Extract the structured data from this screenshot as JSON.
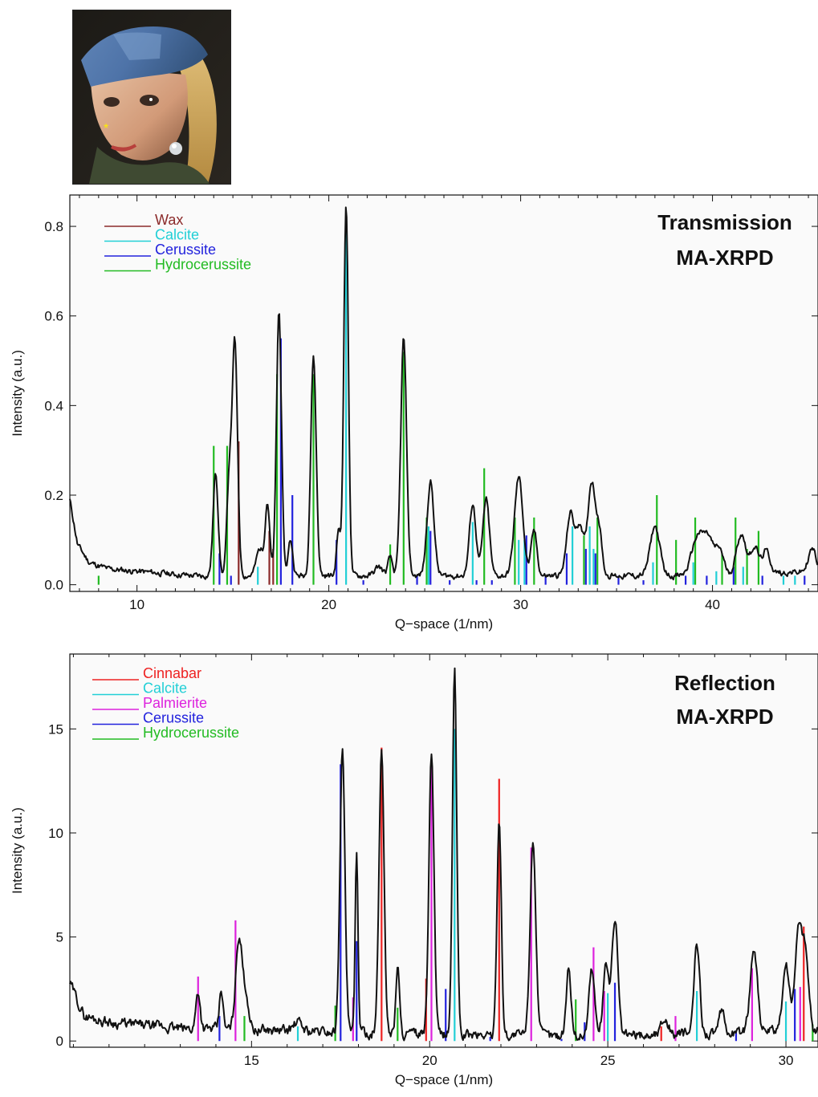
{
  "thumbnail": {
    "description_icon": "painting-thumbnail-icon"
  },
  "chart_data": [
    {
      "type": "line",
      "title": "",
      "annotation": [
        "Transmission",
        "MA-XRPD"
      ],
      "xlabel": "Q−space (1/nm)",
      "ylabel": "Intensity (a.u.)",
      "xlim": [
        6.5,
        45.5
      ],
      "ylim": [
        -0.015,
        0.87
      ],
      "xticks": [
        10,
        20,
        30,
        40
      ],
      "yticks": [
        0.0,
        0.2,
        0.4,
        0.6,
        0.8
      ],
      "ytick_labels": [
        "0.0",
        "0.2",
        "0.4",
        "0.6",
        "0.8"
      ],
      "legend_position": "top-left",
      "legend": [
        {
          "name": "Wax",
          "color": "#8b2a2a"
        },
        {
          "name": "Calcite",
          "color": "#22cfd6"
        },
        {
          "name": "Cerussite",
          "color": "#2222dd"
        },
        {
          "name": "Hydrocerussite",
          "color": "#22bb22"
        }
      ],
      "peaks": [
        {
          "x": 14.1,
          "h": 0.23,
          "w": 0.13
        },
        {
          "x": 14.8,
          "h": 0.2,
          "w": 0.12
        },
        {
          "x": 15.1,
          "h": 0.52,
          "w": 0.14
        },
        {
          "x": 16.4,
          "h": 0.06,
          "w": 0.18
        },
        {
          "x": 16.8,
          "h": 0.16,
          "w": 0.12
        },
        {
          "x": 17.4,
          "h": 0.59,
          "w": 0.13
        },
        {
          "x": 18.0,
          "h": 0.08,
          "w": 0.12
        },
        {
          "x": 19.2,
          "h": 0.49,
          "w": 0.14
        },
        {
          "x": 20.5,
          "h": 0.1,
          "w": 0.1
        },
        {
          "x": 20.9,
          "h": 0.83,
          "w": 0.12
        },
        {
          "x": 22.6,
          "h": 0.02,
          "w": 0.2
        },
        {
          "x": 23.2,
          "h": 0.04,
          "w": 0.12
        },
        {
          "x": 23.9,
          "h": 0.53,
          "w": 0.15
        },
        {
          "x": 25.3,
          "h": 0.21,
          "w": 0.18
        },
        {
          "x": 27.5,
          "h": 0.16,
          "w": 0.17
        },
        {
          "x": 28.2,
          "h": 0.17,
          "w": 0.17
        },
        {
          "x": 29.9,
          "h": 0.22,
          "w": 0.22
        },
        {
          "x": 30.7,
          "h": 0.1,
          "w": 0.15
        },
        {
          "x": 32.6,
          "h": 0.14,
          "w": 0.2
        },
        {
          "x": 33.1,
          "h": 0.11,
          "w": 0.18
        },
        {
          "x": 33.7,
          "h": 0.21,
          "w": 0.2
        },
        {
          "x": 34.1,
          "h": 0.09,
          "w": 0.15
        },
        {
          "x": 37.0,
          "h": 0.11,
          "w": 0.25
        },
        {
          "x": 39.2,
          "h": 0.08,
          "w": 0.3
        },
        {
          "x": 39.8,
          "h": 0.08,
          "w": 0.3
        },
        {
          "x": 40.4,
          "h": 0.05,
          "w": 0.2
        },
        {
          "x": 41.5,
          "h": 0.09,
          "w": 0.25
        },
        {
          "x": 42.2,
          "h": 0.06,
          "w": 0.2
        },
        {
          "x": 42.8,
          "h": 0.05,
          "w": 0.2
        },
        {
          "x": 45.2,
          "h": 0.05,
          "w": 0.2
        }
      ],
      "baseline": [
        [
          6.5,
          0.19
        ],
        [
          6.9,
          0.09
        ],
        [
          7.5,
          0.05
        ],
        [
          8.5,
          0.035
        ],
        [
          10.0,
          0.03
        ],
        [
          11.5,
          0.025
        ],
        [
          13.0,
          0.02
        ],
        [
          20.0,
          0.02
        ],
        [
          30.0,
          0.02
        ],
        [
          40.0,
          0.02
        ],
        [
          45.5,
          0.03
        ]
      ],
      "sticks": [
        {
          "phase": "Wax",
          "color": "#8b2a2a",
          "lines": [
            [
              15.3,
              0.32
            ],
            [
              16.9,
              0.12
            ],
            [
              17.1,
              0.08
            ]
          ]
        },
        {
          "phase": "Calcite",
          "color": "#22cfd6",
          "lines": [
            [
              16.3,
              0.04
            ],
            [
              20.9,
              0.83
            ],
            [
              25.2,
              0.13
            ],
            [
              27.5,
              0.14
            ],
            [
              29.9,
              0.1
            ],
            [
              30.2,
              0.1
            ],
            [
              32.7,
              0.13
            ],
            [
              33.6,
              0.13
            ],
            [
              33.8,
              0.08
            ],
            [
              36.9,
              0.05
            ],
            [
              39.0,
              0.05
            ],
            [
              40.2,
              0.03
            ],
            [
              41.6,
              0.04
            ],
            [
              43.7,
              0.02
            ],
            [
              44.3,
              0.02
            ]
          ]
        },
        {
          "phase": "Cerussite",
          "color": "#2222dd",
          "lines": [
            [
              14.3,
              0.07
            ],
            [
              14.9,
              0.02
            ],
            [
              17.5,
              0.55
            ],
            [
              18.1,
              0.2
            ],
            [
              20.4,
              0.1
            ],
            [
              21.8,
              0.01
            ],
            [
              24.6,
              0.02
            ],
            [
              25.3,
              0.12
            ],
            [
              26.3,
              0.01
            ],
            [
              27.7,
              0.01
            ],
            [
              28.5,
              0.01
            ],
            [
              30.3,
              0.11
            ],
            [
              31.3,
              0.02
            ],
            [
              32.4,
              0.07
            ],
            [
              33.4,
              0.08
            ],
            [
              33.9,
              0.07
            ],
            [
              35.1,
              0.02
            ],
            [
              36.4,
              0.01
            ],
            [
              38.6,
              0.02
            ],
            [
              39.7,
              0.02
            ],
            [
              41.1,
              0.04
            ],
            [
              42.6,
              0.02
            ],
            [
              44.8,
              0.02
            ]
          ]
        },
        {
          "phase": "Hydrocerussite",
          "color": "#22bb22",
          "lines": [
            [
              8.0,
              0.02
            ],
            [
              14.0,
              0.31
            ],
            [
              14.7,
              0.31
            ],
            [
              17.3,
              0.47
            ],
            [
              19.2,
              0.47
            ],
            [
              23.2,
              0.09
            ],
            [
              23.9,
              0.52
            ],
            [
              25.1,
              0.15
            ],
            [
              28.1,
              0.26
            ],
            [
              29.7,
              0.15
            ],
            [
              30.7,
              0.15
            ],
            [
              33.3,
              0.11
            ],
            [
              34.0,
              0.15
            ],
            [
              37.1,
              0.2
            ],
            [
              38.1,
              0.1
            ],
            [
              39.1,
              0.15
            ],
            [
              40.5,
              0.07
            ],
            [
              41.2,
              0.15
            ],
            [
              41.8,
              0.08
            ],
            [
              42.4,
              0.12
            ]
          ]
        }
      ]
    },
    {
      "type": "line",
      "title": "",
      "annotation": [
        "Reflection",
        "MA-XRPD"
      ],
      "xlabel": "Q−space (1/nm)",
      "ylabel": "Intensity (a.u.)",
      "xlim": [
        9.9,
        30.9
      ],
      "ylim": [
        -0.3,
        18.6
      ],
      "xticks": [
        15,
        20,
        25,
        30
      ],
      "yticks": [
        0,
        5,
        10,
        15
      ],
      "ytick_labels": [
        "0",
        "5",
        "10",
        "15"
      ],
      "legend_position": "top-left",
      "legend": [
        {
          "name": "Cinnabar",
          "color": "#ee2222"
        },
        {
          "name": "Calcite",
          "color": "#22cfd6"
        },
        {
          "name": "Palmierite",
          "color": "#dd22dd"
        },
        {
          "name": "Cerussite",
          "color": "#2222dd"
        },
        {
          "name": "Hydrocerussite",
          "color": "#22bb22"
        }
      ],
      "peaks": [
        {
          "x": 13.5,
          "h": 1.8,
          "w": 0.06
        },
        {
          "x": 14.15,
          "h": 1.9,
          "w": 0.05
        },
        {
          "x": 14.65,
          "h": 4.5,
          "w": 0.09
        },
        {
          "x": 14.85,
          "h": 1.5,
          "w": 0.08
        },
        {
          "x": 16.3,
          "h": 0.4,
          "w": 0.12
        },
        {
          "x": 17.55,
          "h": 13.6,
          "w": 0.07
        },
        {
          "x": 17.95,
          "h": 8.5,
          "w": 0.04
        },
        {
          "x": 18.65,
          "h": 13.6,
          "w": 0.07
        },
        {
          "x": 19.1,
          "h": 3.3,
          "w": 0.05
        },
        {
          "x": 20.05,
          "h": 13.6,
          "w": 0.07
        },
        {
          "x": 20.7,
          "h": 17.4,
          "w": 0.06
        },
        {
          "x": 21.95,
          "h": 10.5,
          "w": 0.06
        },
        {
          "x": 22.9,
          "h": 9.4,
          "w": 0.08
        },
        {
          "x": 23.9,
          "h": 3.1,
          "w": 0.07
        },
        {
          "x": 24.55,
          "h": 3.2,
          "w": 0.08
        },
        {
          "x": 24.95,
          "h": 3.5,
          "w": 0.08
        },
        {
          "x": 25.2,
          "h": 5.7,
          "w": 0.08
        },
        {
          "x": 26.6,
          "h": 0.8,
          "w": 0.1
        },
        {
          "x": 27.5,
          "h": 4.2,
          "w": 0.08
        },
        {
          "x": 28.2,
          "h": 1.0,
          "w": 0.07
        },
        {
          "x": 29.1,
          "h": 4.1,
          "w": 0.1
        },
        {
          "x": 30.0,
          "h": 3.3,
          "w": 0.09
        },
        {
          "x": 30.35,
          "h": 4.8,
          "w": 0.1
        },
        {
          "x": 30.55,
          "h": 3.5,
          "w": 0.09
        }
      ],
      "baseline": [
        [
          9.9,
          2.8
        ],
        [
          10.3,
          1.2
        ],
        [
          11.0,
          0.9
        ],
        [
          13.0,
          0.6
        ],
        [
          16.0,
          0.5
        ],
        [
          20.0,
          0.3
        ],
        [
          25.0,
          0.25
        ],
        [
          30.9,
          0.5
        ]
      ],
      "sticks": [
        {
          "phase": "Cinnabar",
          "color": "#ee2222",
          "lines": [
            [
              18.65,
              14.1
            ],
            [
              19.9,
              3.0
            ],
            [
              21.95,
              12.6
            ],
            [
              26.5,
              0.7
            ],
            [
              30.5,
              5.5
            ]
          ]
        },
        {
          "phase": "Calcite",
          "color": "#22cfd6",
          "lines": [
            [
              16.3,
              0.7
            ],
            [
              20.7,
              15.0
            ],
            [
              25.0,
              2.3
            ],
            [
              27.5,
              2.4
            ],
            [
              30.0,
              1.9
            ]
          ]
        },
        {
          "phase": "Palmierite",
          "color": "#dd22dd",
          "lines": [
            [
              13.5,
              3.1
            ],
            [
              14.55,
              5.8
            ],
            [
              17.85,
              2.1
            ],
            [
              20.05,
              13.3
            ],
            [
              22.85,
              9.3
            ],
            [
              24.6,
              4.5
            ],
            [
              24.9,
              2.4
            ],
            [
              26.9,
              1.2
            ],
            [
              29.05,
              3.5
            ],
            [
              30.4,
              2.6
            ]
          ]
        },
        {
          "phase": "Cerussite",
          "color": "#2222dd",
          "lines": [
            [
              14.1,
              1.2
            ],
            [
              17.5,
              13.3
            ],
            [
              17.95,
              4.8
            ],
            [
              20.45,
              2.5
            ],
            [
              21.7,
              0.2
            ],
            [
              23.7,
              0.1
            ],
            [
              24.35,
              0.9
            ],
            [
              25.2,
              2.8
            ],
            [
              28.6,
              0.5
            ],
            [
              30.25,
              2.5
            ]
          ]
        },
        {
          "phase": "Hydrocerussite",
          "color": "#22bb22",
          "lines": [
            [
              14.8,
              1.2
            ],
            [
              17.35,
              1.7
            ],
            [
              19.1,
              1.6
            ],
            [
              24.1,
              2.0
            ],
            [
              30.75,
              0.8
            ]
          ]
        }
      ]
    }
  ]
}
